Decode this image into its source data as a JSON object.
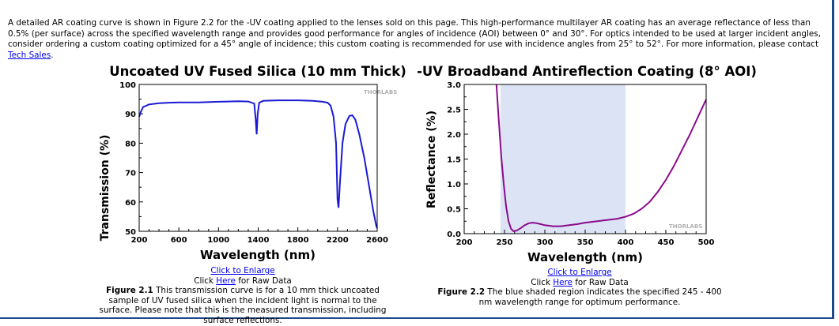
{
  "intro": {
    "text": "A detailed AR coating curve is shown in Figure 2.2 for the -UV coating applied to the lenses sold on this page. This high-performance multilayer AR coating has an average reflectance of less than 0.5% (per surface) across the specified wavelength range and provides good performance for angles of incidence (AOI) between 0° and 30°. For optics intended to be used at larger incident angles, consider ordering a custom coating optimized for a 45° angle of incidence; this custom coating is recommended for use with incidence angles from 25° to 52°. For more information, please contact ",
    "link_text": "Tech Sales",
    "end": "."
  },
  "colors": {
    "link": "#0000ee",
    "curve1": "#1a1ad6",
    "curve2": "#8b0a8b",
    "shade": "#dbe3f5",
    "border": "#1f4a8a"
  },
  "chart_data": [
    {
      "type": "line",
      "title": "Uncoated UV Fused Silica (10 mm Thick)",
      "xlabel": "Wavelength (nm)",
      "ylabel": "Transmission (%)",
      "xlim": [
        200,
        2600
      ],
      "ylim": [
        50,
        100
      ],
      "xticks": [
        "200",
        "600",
        "1000",
        "1400",
        "1800",
        "2200",
        "2600"
      ],
      "yticks": [
        "50",
        "60",
        "70",
        "80",
        "90",
        "100"
      ],
      "watermark": "THORLABS",
      "series": [
        {
          "x": [
            200,
            215,
            240,
            300,
            400,
            500,
            600,
            800,
            1000,
            1100,
            1200,
            1300,
            1360,
            1375,
            1385,
            1395,
            1410,
            1450,
            1500,
            1600,
            1800,
            1950,
            2050,
            2100,
            2130,
            2160,
            2185,
            2200,
            2210,
            2225,
            2250,
            2280,
            2320,
            2350,
            2380,
            2420,
            2470,
            2520,
            2560,
            2590,
            2600
          ],
          "y": [
            89,
            90.5,
            92.3,
            93.2,
            93.6,
            93.8,
            93.9,
            93.9,
            94.1,
            94.2,
            94.3,
            94.2,
            93.5,
            88,
            83,
            90,
            93.8,
            94.4,
            94.5,
            94.6,
            94.6,
            94.4,
            94.1,
            93.8,
            92.8,
            89,
            80,
            61,
            58,
            67,
            80,
            86.5,
            89.3,
            89.5,
            88,
            83,
            75,
            65,
            57,
            52,
            51
          ]
        }
      ]
    },
    {
      "type": "line",
      "title": "-UV Broadband Antireflection Coating (8° AOI)",
      "xlabel": "Wavelength (nm)",
      "ylabel": "Reflectance (%)",
      "xlim": [
        200,
        500
      ],
      "ylim": [
        0,
        3
      ],
      "xticks": [
        "200",
        "250",
        "300",
        "350",
        "400",
        "450",
        "500"
      ],
      "yticks": [
        "0.0",
        "0.5",
        "1.0",
        "1.5",
        "2.0",
        "2.5",
        "3.0"
      ],
      "shaded_range": [
        245,
        400
      ],
      "watermark": "THORLABS",
      "series": [
        {
          "x": [
            240,
            243,
            246,
            249,
            252,
            255,
            258,
            261,
            265,
            270,
            275,
            280,
            285,
            290,
            295,
            300,
            310,
            320,
            330,
            340,
            350,
            360,
            370,
            380,
            390,
            400,
            410,
            420,
            430,
            440,
            450,
            460,
            470,
            480,
            490,
            500
          ],
          "y": [
            3.0,
            2.25,
            1.55,
            1.0,
            0.55,
            0.25,
            0.1,
            0.05,
            0.06,
            0.11,
            0.17,
            0.21,
            0.22,
            0.21,
            0.19,
            0.17,
            0.15,
            0.15,
            0.17,
            0.19,
            0.22,
            0.24,
            0.26,
            0.28,
            0.3,
            0.34,
            0.4,
            0.5,
            0.64,
            0.84,
            1.08,
            1.36,
            1.68,
            2.0,
            2.35,
            2.7
          ]
        }
      ]
    }
  ],
  "captions": [
    {
      "enlarge": "Click to Enlarge",
      "raw_pre": "Click ",
      "raw_link": "Here",
      "raw_post": " for Raw Data",
      "fig_label": "Figure 2.1",
      "fig_text": " This transmission curve is for a 10 mm thick uncoated sample of UV fused silica when the incident light is normal to the surface. Please note that this is the measured transmission, including surface reflections."
    },
    {
      "enlarge": "Click to Enlarge",
      "raw_pre": "Click ",
      "raw_link": "Here",
      "raw_post": " for Raw Data",
      "fig_label": "Figure 2.2",
      "fig_text": " The blue shaded region indicates the specified 245 - 400 nm wavelength range for optimum performance."
    }
  ]
}
